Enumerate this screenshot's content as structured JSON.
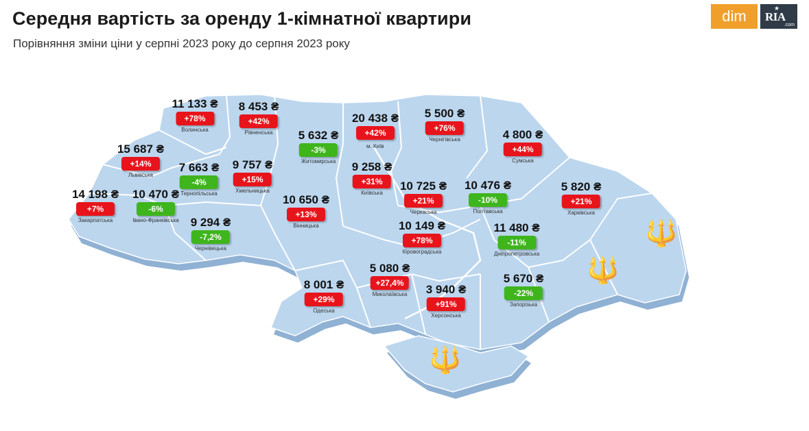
{
  "header": {
    "title": "Середня вартість за оренду 1-кімнатної квартири",
    "subtitle": "Порівняння зміни ціни у серпні 2023 року до серпня 2023 року"
  },
  "logo": {
    "dim": "dim",
    "ria": "RIA",
    "ria_domain": ".com"
  },
  "colors": {
    "increase": "#e8141c",
    "decrease": "#3fb51d",
    "map_fill": "#bcd6ee",
    "map_side": "#8fb1d3"
  },
  "kyiv_city_label": "м. Київ",
  "regions": [
    {
      "key": "volynska",
      "price": "11 133 ₴",
      "change": "+78%",
      "direction": "up",
      "name": "Волинська"
    },
    {
      "key": "rivnenska",
      "price": "8 453 ₴",
      "change": "+42%",
      "direction": "up",
      "name": "Рівненська"
    },
    {
      "key": "zhytomyrska",
      "price": "5 632 ₴",
      "change": "-3%",
      "direction": "down",
      "name": "Житомирська"
    },
    {
      "key": "kyiv",
      "price": "20 438 ₴",
      "change": "+42%",
      "direction": "up",
      "name": ""
    },
    {
      "key": "chernihivska",
      "price": "5 500 ₴",
      "change": "+76%",
      "direction": "up",
      "name": "Чернігівська"
    },
    {
      "key": "sumska",
      "price": "4 800 ₴",
      "change": "+44%",
      "direction": "up",
      "name": "Сумська"
    },
    {
      "key": "lvivska",
      "price": "15 687 ₴",
      "change": "+14%",
      "direction": "up",
      "name": "Львівська"
    },
    {
      "key": "ternopilska",
      "price": "7 663 ₴",
      "change": "-4%",
      "direction": "down",
      "name": "Тернопільська"
    },
    {
      "key": "khmelnytska",
      "price": "9 757 ₴",
      "change": "+15%",
      "direction": "up",
      "name": "Хмельницька"
    },
    {
      "key": "kyivska",
      "price": "9 258 ₴",
      "change": "+31%",
      "direction": "up",
      "name": "Київська"
    },
    {
      "key": "zakarpatska",
      "price": "14 198 ₴",
      "change": "+7%",
      "direction": "up",
      "name": "Закарпатська"
    },
    {
      "key": "ivano-frankivska",
      "price": "10 470 ₴",
      "change": "-6%",
      "direction": "down",
      "name": "Івано-Франківська"
    },
    {
      "key": "cherkaska",
      "price": "10 725 ₴",
      "change": "+21%",
      "direction": "up",
      "name": "Черкаська"
    },
    {
      "key": "poltavska",
      "price": "10 476 ₴",
      "change": "-10%",
      "direction": "down",
      "name": "Полтавська"
    },
    {
      "key": "kharkivska",
      "price": "5 820 ₴",
      "change": "+21%",
      "direction": "up",
      "name": "Харківська"
    },
    {
      "key": "vinnytska",
      "price": "10 650 ₴",
      "change": "+13%",
      "direction": "up",
      "name": "Вінницька"
    },
    {
      "key": "chernivetska",
      "price": "9 294 ₴",
      "change": "-7,2%",
      "direction": "down",
      "name": "Чернівецька"
    },
    {
      "key": "kirovohradska",
      "price": "10 149 ₴",
      "change": "+78%",
      "direction": "up",
      "name": "Кіровоградська"
    },
    {
      "key": "dnipropetrovska",
      "price": "11 480 ₴",
      "change": "-11%",
      "direction": "down",
      "name": "Дніпропетровська"
    },
    {
      "key": "mykolaivska",
      "price": "5 080 ₴",
      "change": "+27,4%",
      "direction": "up",
      "name": "Миколаївська"
    },
    {
      "key": "odeska",
      "price": "8 001 ₴",
      "change": "+29%",
      "direction": "up",
      "name": "Одеська"
    },
    {
      "key": "khersonska",
      "price": "3 940 ₴",
      "change": "+91%",
      "direction": "up",
      "name": "Херсонська"
    },
    {
      "key": "zaporizka",
      "price": "5 670 ₴",
      "change": "-22%",
      "direction": "down",
      "name": "Запорізька"
    }
  ]
}
